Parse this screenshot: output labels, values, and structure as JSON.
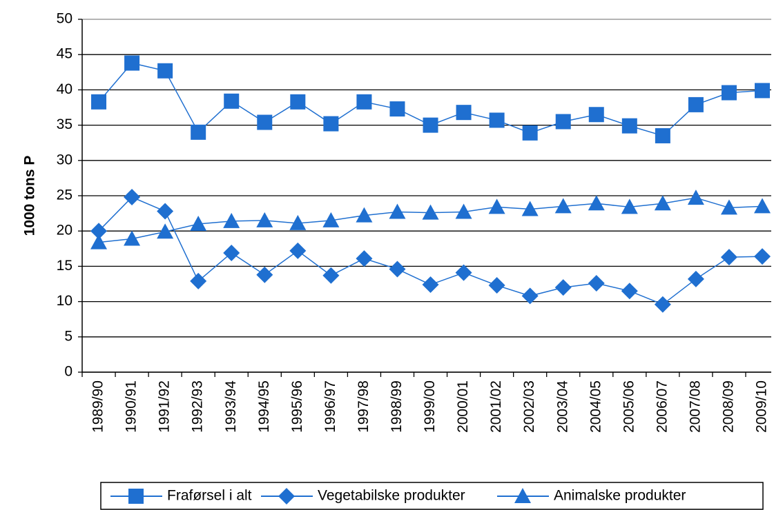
{
  "chart_data": {
    "type": "line",
    "y_label": "1000 tons P",
    "categories": [
      "1989/90",
      "1990/91",
      "1991/92",
      "1992/93",
      "1993/94",
      "1994/95",
      "1995/96",
      "1996/97",
      "1997/98",
      "1998/99",
      "1999/00",
      "2000/01",
      "2001/02",
      "2002/03",
      "2003/04",
      "2004/05",
      "2005/06",
      "2006/07",
      "2007/08",
      "2008/09",
      "2009/10"
    ],
    "series": [
      {
        "name": "Fraførsel i alt",
        "color": "#1f6fd0",
        "marker": "square",
        "values": [
          38.3,
          43.8,
          42.7,
          34.0,
          38.4,
          35.4,
          38.3,
          35.2,
          38.3,
          37.3,
          35.0,
          36.8,
          35.7,
          33.9,
          35.5,
          36.5,
          34.9,
          33.5,
          37.9,
          39.6,
          39.9
        ]
      },
      {
        "name": "Vegetabilske produkter",
        "color": "#1f6fd0",
        "marker": "diamond",
        "values": [
          20.0,
          24.8,
          22.8,
          12.9,
          16.9,
          13.8,
          17.2,
          13.7,
          16.1,
          14.6,
          12.4,
          14.1,
          12.3,
          10.8,
          12.0,
          12.6,
          11.5,
          9.6,
          13.2,
          16.3,
          16.4
        ]
      },
      {
        "name": "Animalske produkter",
        "color": "#1f6fd0",
        "marker": "triangle",
        "values": [
          18.4,
          18.9,
          19.9,
          21.0,
          21.4,
          21.5,
          21.1,
          21.5,
          22.2,
          22.7,
          22.6,
          22.7,
          23.4,
          23.1,
          23.5,
          23.9,
          23.4,
          23.9,
          24.7,
          23.3,
          23.5
        ]
      }
    ],
    "ylim": [
      0,
      50
    ],
    "yticks": [
      0,
      5,
      10,
      15,
      20,
      25,
      30,
      35,
      40,
      45,
      50
    ],
    "grid": true,
    "legend": "bottom"
  }
}
